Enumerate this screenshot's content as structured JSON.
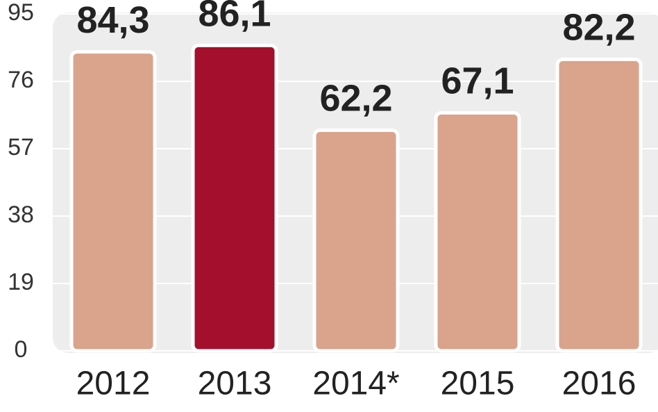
{
  "chart_data": {
    "type": "bar",
    "categories": [
      "2012",
      "2013",
      "2014*",
      "2015",
      "2016"
    ],
    "values": [
      84.3,
      86.1,
      62.2,
      67.1,
      82.2
    ],
    "value_labels": [
      "84,3",
      "86,1",
      "62,2",
      "67,1",
      "82,2"
    ],
    "colors": [
      "#d9a38c",
      "#a30f2c",
      "#d9a38c",
      "#d9a38c",
      "#d9a38c"
    ],
    "ylim": [
      0,
      95
    ],
    "yticks": [
      0,
      19,
      38,
      57,
      76,
      95
    ],
    "grid": true
  }
}
